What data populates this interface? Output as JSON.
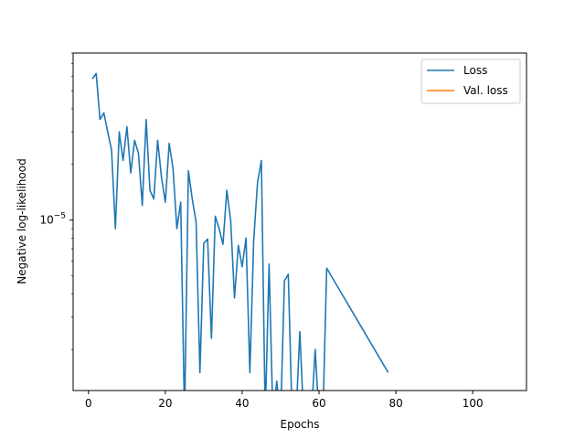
{
  "chart_data": {
    "type": "line",
    "title": "",
    "xlabel": "Epochs",
    "ylabel": "Negative log-likelihood",
    "yscale": "log",
    "xlim": [
      -4,
      114
    ],
    "ylim": [
      1.2e-06,
      8e-05
    ],
    "xticks": [
      0,
      20,
      40,
      60,
      80,
      100
    ],
    "xtick_labels": [
      "0",
      "20",
      "40",
      "60",
      "80",
      "100"
    ],
    "yticks": [
      1e-05
    ],
    "ytick_labels": [
      "10",
      "−5"
    ],
    "grid": false,
    "legend": {
      "placement": "top-right",
      "entries": [
        "Loss",
        "Val. loss"
      ]
    },
    "series": [
      {
        "name": "Loss",
        "color": "#1f77b4",
        "x": [
          1,
          2,
          3,
          4,
          5,
          6,
          7,
          8,
          9,
          10,
          11,
          12,
          13,
          14,
          15,
          16,
          17,
          18,
          19,
          20,
          21,
          22,
          23,
          24,
          25,
          26,
          27,
          28,
          29,
          30,
          31,
          32,
          33,
          34,
          35,
          36,
          37,
          38,
          39,
          40,
          41,
          42,
          43,
          44,
          45,
          46,
          47,
          48,
          49,
          50,
          51,
          52,
          53,
          54,
          55,
          56,
          57,
          58,
          59,
          60,
          61,
          62,
          78
        ],
        "y": [
          5.8e-05,
          6.2e-05,
          3.5e-05,
          3.8e-05,
          3e-05,
          2.4e-05,
          9e-06,
          3e-05,
          2.1e-05,
          3.2e-05,
          1.8e-05,
          2.7e-05,
          2.3e-05,
          1.2e-05,
          3.5e-05,
          1.45e-05,
          1.3e-05,
          2.7e-05,
          1.7e-05,
          1.25e-05,
          2.6e-05,
          1.9e-05,
          9e-06,
          1.25e-05,
          null,
          1.85e-05,
          1.3e-05,
          9.8e-06,
          1.5e-06,
          7.5e-06,
          7.9e-06,
          2.3e-06,
          1.05e-05,
          9e-06,
          7.4e-06,
          1.45e-05,
          1e-05,
          3.8e-06,
          7.3e-06,
          5.6e-06,
          8e-06,
          1.5e-06,
          7.8e-06,
          1.6e-05,
          2.1e-05,
          null,
          5.8e-06,
          null,
          1.35e-06,
          null,
          4.7e-06,
          5.1e-06,
          null,
          null,
          2.5e-06,
          null,
          null,
          null,
          2e-06,
          null,
          null,
          5.5e-06,
          1.5e-06
        ]
      },
      {
        "name": "Val. loss",
        "color": "#ff7f0e",
        "x": [],
        "y": []
      }
    ]
  }
}
